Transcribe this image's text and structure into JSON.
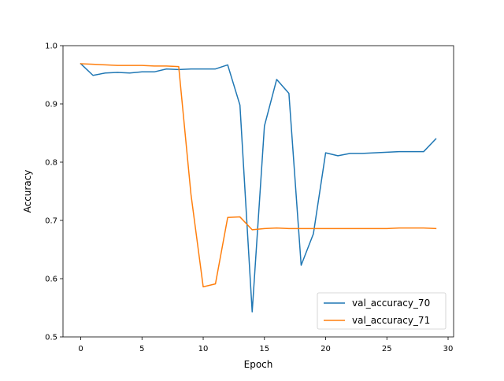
{
  "chart_data": {
    "type": "line",
    "title": "",
    "xlabel": "Epoch",
    "ylabel": "Accuracy",
    "xlim": [
      -1.45,
      30.45
    ],
    "ylim": [
      0.5,
      1.0
    ],
    "xticks": [
      0,
      5,
      10,
      15,
      20,
      25,
      30
    ],
    "yticks": [
      0.5,
      0.6,
      0.7,
      0.8,
      0.9,
      1.0
    ],
    "xtick_labels": [
      "0",
      "5",
      "10",
      "15",
      "20",
      "25",
      "30"
    ],
    "ytick_labels": [
      "0.5",
      "0.6",
      "0.7",
      "0.8",
      "0.9",
      "1.0"
    ],
    "grid": false,
    "legend_position": "lower-right",
    "x": [
      0,
      1,
      2,
      3,
      4,
      5,
      6,
      7,
      8,
      9,
      10,
      11,
      12,
      13,
      14,
      15,
      16,
      17,
      18,
      19,
      20,
      21,
      22,
      23,
      24,
      25,
      26,
      27,
      28,
      29
    ],
    "series": [
      {
        "name": "val_accuracy_70",
        "color": "#1f77b4",
        "values": [
          0.969,
          0.949,
          0.953,
          0.954,
          0.953,
          0.955,
          0.955,
          0.96,
          0.959,
          0.96,
          0.96,
          0.96,
          0.967,
          0.898,
          0.543,
          0.862,
          0.942,
          0.918,
          0.623,
          0.677,
          0.816,
          0.811,
          0.815,
          0.815,
          0.816,
          0.817,
          0.818,
          0.818,
          0.818,
          0.84
        ]
      },
      {
        "name": "val_accuracy_71",
        "color": "#ff7f0e",
        "values": [
          0.969,
          0.968,
          0.967,
          0.966,
          0.966,
          0.966,
          0.965,
          0.965,
          0.964,
          0.745,
          0.586,
          0.591,
          0.705,
          0.706,
          0.684,
          0.686,
          0.687,
          0.686,
          0.686,
          0.686,
          0.686,
          0.686,
          0.686,
          0.686,
          0.686,
          0.686,
          0.687,
          0.687,
          0.687,
          0.686
        ]
      }
    ]
  }
}
